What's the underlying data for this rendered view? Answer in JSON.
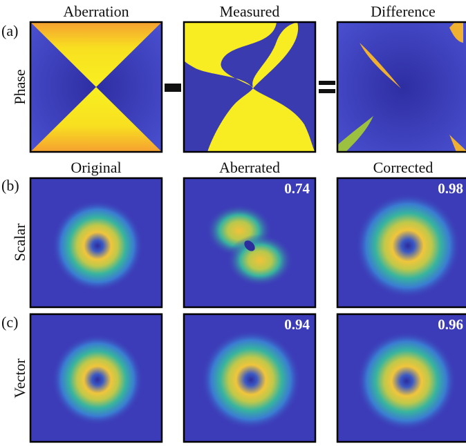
{
  "rows": [
    {
      "label": "(a)",
      "row_label": "Phase",
      "titles": [
        "Aberration",
        "Measured",
        "Difference"
      ]
    },
    {
      "label": "(b)",
      "row_label": "Scalar",
      "titles": [
        "Original",
        "Aberrated",
        "Corrected"
      ],
      "scores": {
        "aberrated": 0.74,
        "corrected": 0.98
      }
    },
    {
      "label": "(c)",
      "row_label": "Vector",
      "scores": {
        "aberrated": 0.94,
        "corrected": 0.96
      }
    }
  ]
}
